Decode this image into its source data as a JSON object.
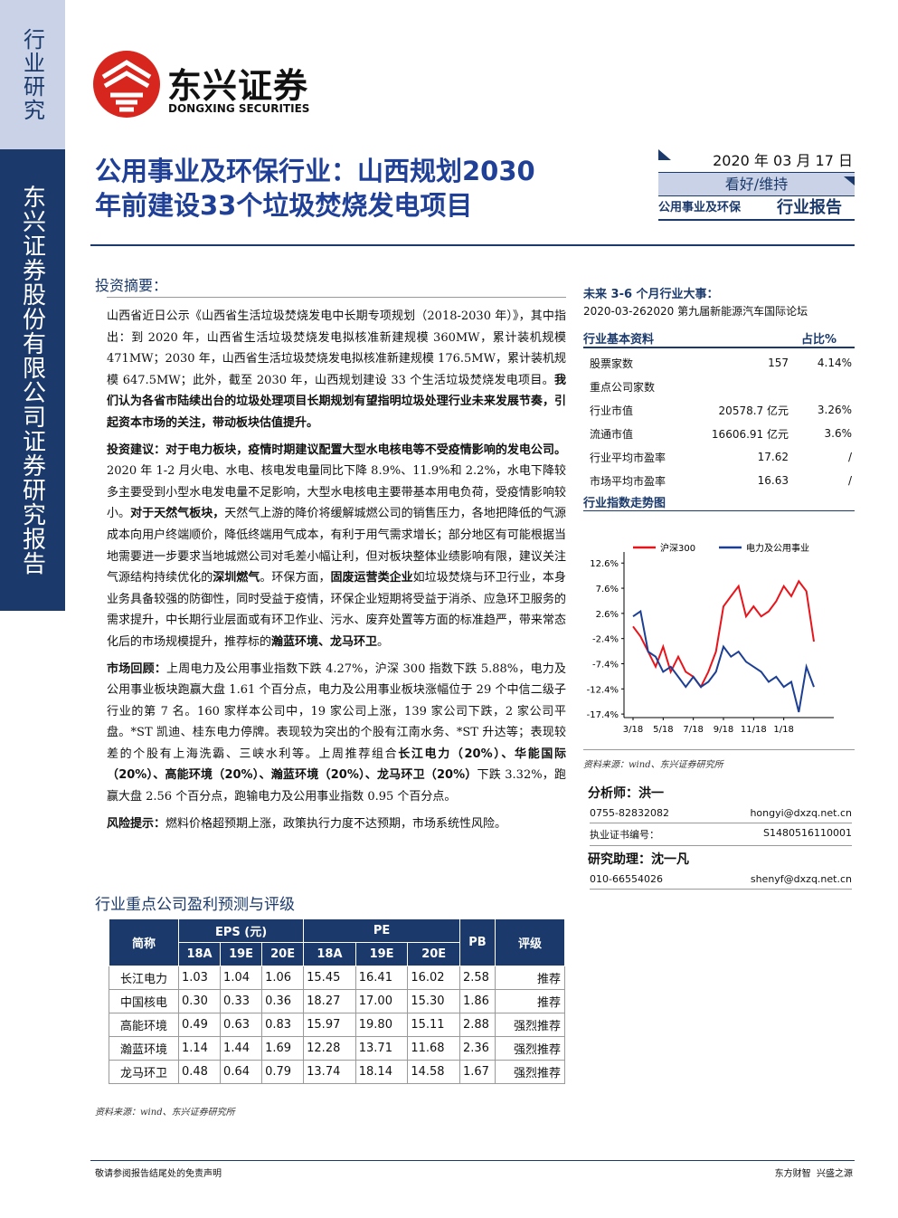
{
  "sidebar": {
    "top": "行业研究",
    "bottom": "东兴证券股份有限公司证券研究报告"
  },
  "logo": {
    "name": "东兴证券",
    "english": "DONGXING SECURITIES"
  },
  "header": {
    "title_lines": [
      "公用事业及环保行业：山西规划2030",
      "年前建设33个垃圾焚烧发电项目"
    ],
    "date": "2020 年 03 月 17 日",
    "rating": "看好/维持",
    "industry": "公用事业及环保",
    "report_type": "行业报告"
  },
  "summary": {
    "heading": "投资摘要：",
    "paragraphs": [
      [
        {
          "t": "山西省近日公示《山西省生活垃圾焚烧发电中长期专项规划（2018-2030 年）》，其中指出：到 2020 年，山西省生活垃圾焚烧发电拟核准新建规模 360MW，累计装机规模 471MW；2030 年，山西省生活垃圾焚烧发电拟核准新建规模 176.5MW，累计装机规模 647.5MW；此外，截至 2030 年，山西规划建设 33 个生活垃圾焚烧发电项目。"
        },
        {
          "t": "我们认为各省市陆续出台的垃圾处理项目长期规划有望指明垃圾处理行业未来发展节奏，引起资本市场的关注，带动板块估值提升。",
          "b": true
        }
      ],
      [
        {
          "t": "投资建议：对于电力板块，疫情时期建议配置大型水电核电等不受疫情影响的发电公司。",
          "b": true
        },
        {
          "t": "2020 年 1-2 月火电、水电、核电发电量同比下降 8.9%、11.9%和 2.2%，水电下降较多主要受到小型水电发电量不足影响，大型水电核电主要带基本用电负荷，受疫情影响较小。"
        },
        {
          "t": "对于天然气板块，",
          "b": true
        },
        {
          "t": "天然气上游的降价将缓解城燃公司的销售压力，各地把降低的气源成本向用户终端顺价，降低终端用气成本，有利于用气需求增长；部分地区有可能根据当地需要进一步要求当地城燃公司对毛差小幅让利，但对板块整体业绩影响有限，建议关注气源结构持续优化的"
        },
        {
          "t": "深圳燃气",
          "b": true
        },
        {
          "t": "。环保方面，"
        },
        {
          "t": "固废运营类企业",
          "b": true
        },
        {
          "t": "如垃圾焚烧与环卫行业，本身业务具备较强的防御性，同时受益于疫情，环保企业短期将受益于消杀、应急环卫服务的需求提升，中长期行业层面或有环卫作业、污水、废弃处置等方面的标准趋严，带来常态化后的市场规模提升，推荐标的"
        },
        {
          "t": "瀚蓝环境、龙马环卫",
          "b": true
        },
        {
          "t": "。"
        }
      ],
      [
        {
          "t": "市场回顾：",
          "b": true
        },
        {
          "t": "上周电力及公用事业指数下跌 4.27%，沪深 300 指数下跌 5.88%，电力及公用事业板块跑赢大盘 1.61 个百分点，电力及公用事业板块涨幅位于 29 个中信二级子行业的第 7 名。160 家样本公司中，19 家公司上涨，139 家公司下跌，2 家公司平盘。*ST 凯迪、桂东电力停牌。表现较为突出的个股有江南水务、*ST 升达等；表现较差的个股有上海洗霸、三峡水利等。上周推荐组合"
        },
        {
          "t": "长江电力（20%）、华能国际（20%）、高能环境（20%）、瀚蓝环境（20%）、龙马环卫（20%）",
          "b": true
        },
        {
          "t": "下跌 3.32%，跑赢大盘 2.56 个百分点，跑输电力及公用事业指数 0.95 个百分点。"
        }
      ],
      [
        {
          "t": "风险提示：",
          "b": true
        },
        {
          "t": "燃料价格超预期上涨，政策执行力度不达预期，市场系统性风险。"
        }
      ]
    ]
  },
  "events": {
    "heading": "未来 3-6 个月行业大事：",
    "items": [
      "2020-03-262020 第九届新能源汽车国际论坛"
    ]
  },
  "basics": {
    "heading": "行业基本资料",
    "column": "占比%",
    "rows": [
      [
        "股票家数",
        "157",
        "4.14%"
      ],
      [
        "重点公司家数"
      ],
      [
        "行业市值",
        "20578.7 亿元",
        "3.26%"
      ],
      [
        "流通市值",
        "16606.91 亿元",
        "3.6%"
      ],
      [
        "行业平均市盈率",
        "17.62",
        "/"
      ],
      [
        "市场平均市盈率",
        "16.63",
        "/"
      ]
    ]
  },
  "chart_heading": "行业指数走势图",
  "chart_data": {
    "type": "line",
    "categories": [
      "3/18",
      null,
      null,
      null,
      "5/18",
      null,
      null,
      null,
      "7/18",
      null,
      null,
      null,
      "9/18",
      null,
      null,
      null,
      "11/18",
      null,
      null,
      null,
      "1/18",
      null,
      null,
      null,
      null
    ],
    "series": [
      {
        "name": "沪深300",
        "color": "#e8141b",
        "values": [
          0,
          -2,
          -5,
          -8,
          -4,
          -9,
          -6,
          -9,
          -10,
          -12,
          -9,
          -5,
          4,
          6,
          8,
          2,
          4,
          2,
          3,
          5,
          8,
          6,
          9,
          7,
          -3
        ]
      },
      {
        "name": "电力及公用事业",
        "color": "#1c3f94",
        "values": [
          2,
          3,
          -5,
          -6,
          -9,
          -8,
          -10,
          -12,
          -10,
          -12,
          -11,
          -9,
          -4,
          -6,
          -5,
          -7,
          -8,
          -9,
          -11,
          -10,
          -12,
          -11,
          -17,
          -8,
          -12
        ]
      }
    ],
    "ylim": [
      -18.1,
      14.8
    ],
    "yticks": [
      {
        "value": 12.6,
        "label": "12.6%"
      },
      {
        "value": 7.6,
        "label": "7.6%"
      },
      {
        "value": 2.6,
        "label": "2.6%"
      },
      {
        "value": -2.4,
        "label": "-2.4%"
      },
      {
        "value": -7.4,
        "label": "-7.4%"
      },
      {
        "value": -12.4,
        "label": "-12.4%"
      },
      {
        "value": -17.4,
        "label": "-17.4%"
      }
    ],
    "grid": false
  },
  "chart_source": "资料来源：wind、东兴证券研究所",
  "analysts": [
    {
      "role": "分析师：洪一",
      "phone": "0755-82832082",
      "email": "hongyi@dxzq.net.cn",
      "cert_label": "执业证书编号：",
      "cert": "S1480516110001"
    },
    {
      "role": "研究助理：沈一凡",
      "phone": "010-66554026",
      "email": "shenyf@dxzq.net.cn"
    }
  ],
  "forecast": {
    "heading": "行业重点公司盈利预测与评级",
    "name_col": "简称",
    "eps": "EPS (元)",
    "pe": "PE",
    "pb": "PB",
    "rating": "评级",
    "eps_years": [
      "18A",
      "19E",
      "20E"
    ],
    "pe_years": [
      "18A",
      "19E",
      "20E"
    ],
    "rows": [
      [
        "长江电力",
        "1.03",
        "1.04",
        "1.06",
        "15.45",
        "16.41",
        "16.02",
        "2.58",
        "推荐"
      ],
      [
        "中国核电",
        "0.30",
        "0.33",
        "0.36",
        "18.27",
        "17.00",
        "15.30",
        "1.86",
        "推荐"
      ],
      [
        "高能环境",
        "0.49",
        "0.63",
        "0.83",
        "15.97",
        "19.80",
        "15.11",
        "2.88",
        "强烈推荐"
      ],
      [
        "瀚蓝环境",
        "1.14",
        "1.44",
        "1.69",
        "12.28",
        "13.71",
        "11.68",
        "2.36",
        "强烈推荐"
      ],
      [
        "龙马环卫",
        "0.48",
        "0.64",
        "0.79",
        "13.74",
        "18.14",
        "14.58",
        "1.67",
        "强烈推荐"
      ]
    ]
  },
  "forecast_source": "资料来源：wind、东兴证券研究所",
  "footer": {
    "left": "敬请参阅报告结尾处的免责声明",
    "right": "东方财智  兴盛之源"
  }
}
